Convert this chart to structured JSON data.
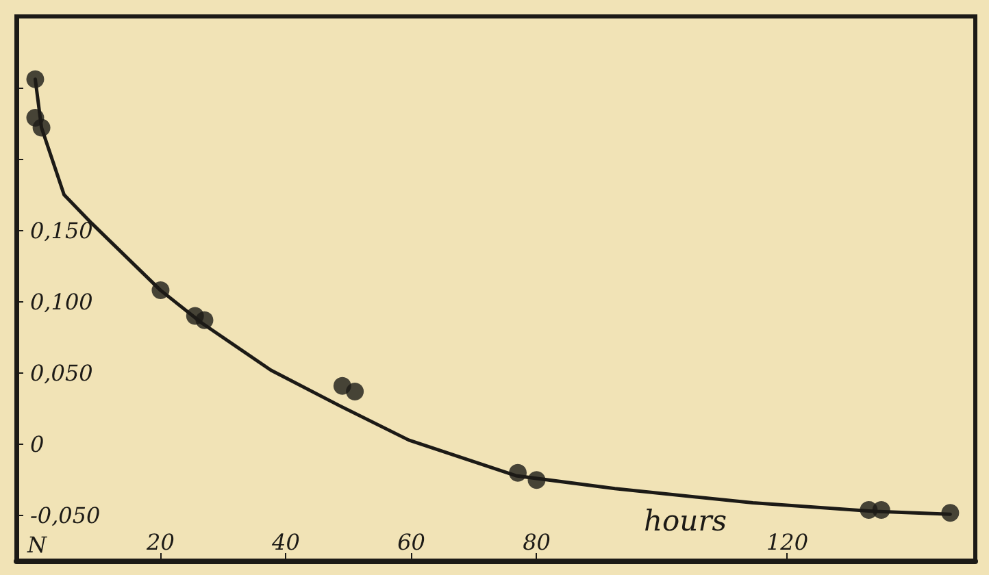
{
  "chart_data": {
    "type": "scatter",
    "xlabel": "hours",
    "ylabel": "N",
    "xlim": [
      -3,
      150
    ],
    "xticks": [
      20,
      40,
      60,
      80,
      120
    ],
    "ylim": [
      -0.082,
      0.3
    ],
    "yticks": [
      {
        "value": -0.05,
        "label": "-0,050"
      },
      {
        "value": 0,
        "label": "0"
      },
      {
        "value": 0.05,
        "label": "0,050"
      },
      {
        "value": 0.1,
        "label": "0,100"
      },
      {
        "value": 0.15,
        "label": "0,150"
      },
      {
        "value": 0.2,
        "label": null
      },
      {
        "value": 0.25,
        "label": null
      }
    ],
    "grid": false,
    "marker": "circle",
    "series": [
      {
        "color": "#1c1a16",
        "x": [
          0,
          0,
          1,
          20,
          25.5,
          27,
          49,
          51,
          77,
          80,
          133,
          135,
          146
        ],
        "values": [
          0.256,
          0.229,
          0.222,
          0.108,
          0.09,
          0.087,
          0.041,
          0.037,
          -0.02,
          -0.025,
          -0.046,
          -0.046,
          -0.048
        ]
      },
      {
        "type": "line",
        "color": "#1c1a16",
        "line_style": "solid",
        "marker": "none",
        "x": [
          0,
          1,
          4.6,
          9,
          20,
          26.6,
          37.6,
          48.6,
          59.6,
          76.7,
          92.5,
          114.5,
          134,
          146
        ],
        "values": [
          0.256,
          0.222,
          0.175,
          0.155,
          0.108,
          0.085,
          0.052,
          0.027,
          0.003,
          -0.022,
          -0.031,
          -0.041,
          -0.047,
          -0.049
        ]
      }
    ]
  }
}
